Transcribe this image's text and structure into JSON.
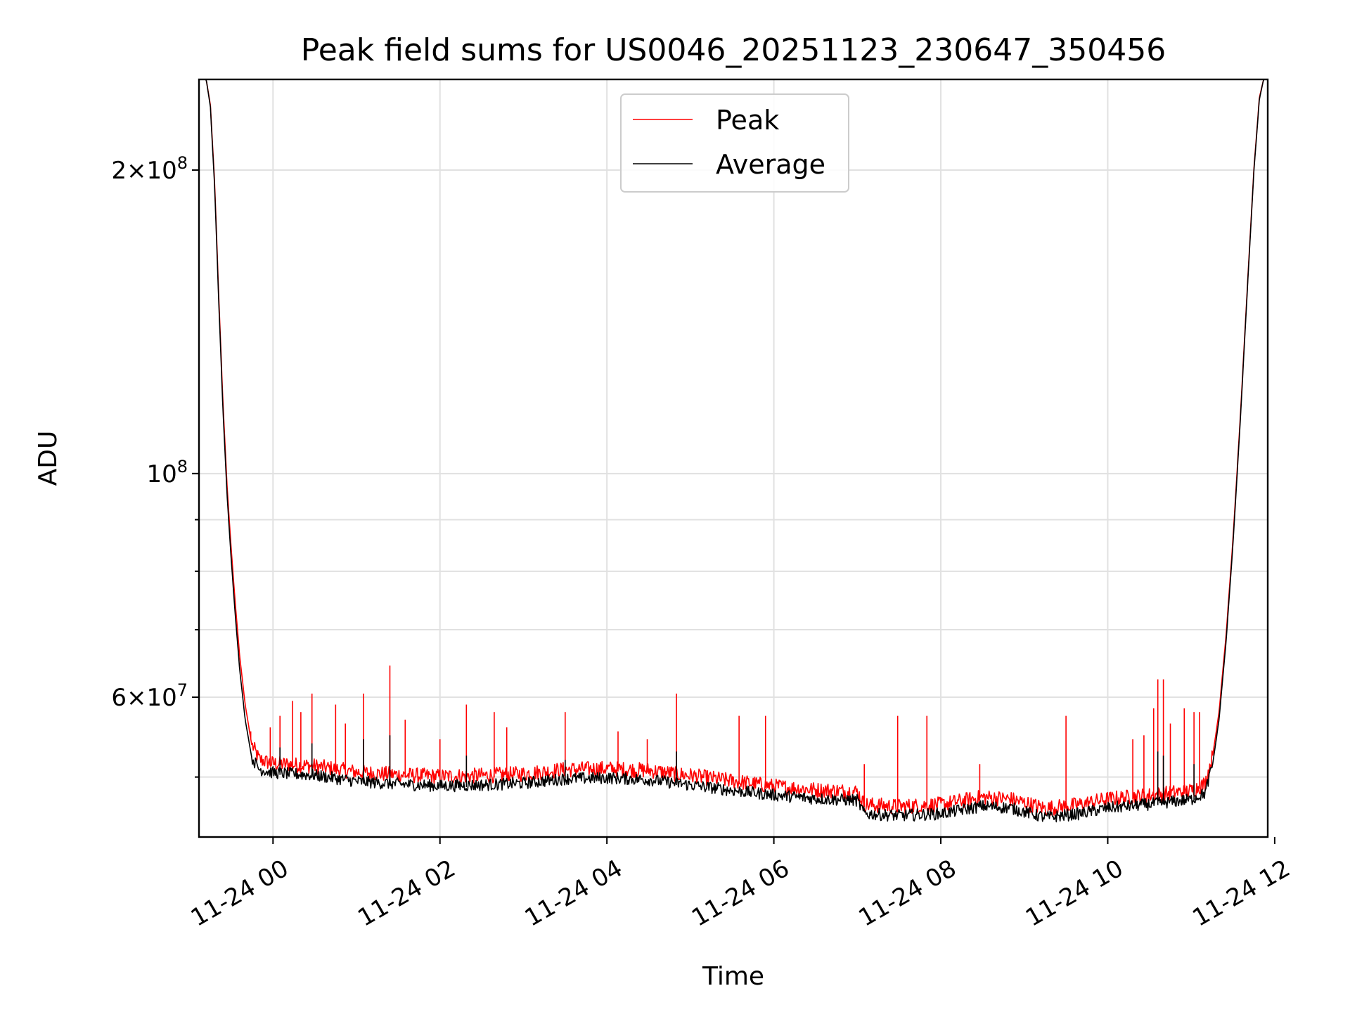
{
  "chart_data": {
    "type": "line",
    "title": "Peak field sums for US0046_20251123_230647_350456",
    "xlabel": "Time",
    "ylabel": "ADU",
    "yscale": "log",
    "ylim": [
      43600000,
      246000000
    ],
    "xlim": [
      "2025-11-23 23:06:47",
      "2025-11-24 11:55:00"
    ],
    "grid": true,
    "legend_position": "top-center",
    "x_ticks": [
      {
        "t": "2025-11-24 00:00",
        "label": "11-24 00"
      },
      {
        "t": "2025-11-24 02:00",
        "label": "11-24 02"
      },
      {
        "t": "2025-11-24 04:00",
        "label": "11-24 04"
      },
      {
        "t": "2025-11-24 06:00",
        "label": "11-24 06"
      },
      {
        "t": "2025-11-24 08:00",
        "label": "11-24 08"
      },
      {
        "t": "2025-11-24 10:00",
        "label": "11-24 10"
      },
      {
        "t": "2025-11-24 12:00",
        "label": "11-24 12"
      }
    ],
    "y_major_ticks": [
      {
        "v": 100000000,
        "base": "10",
        "exp": "8",
        "mult": ""
      },
      {
        "v": 60000000,
        "base": "10",
        "exp": "7",
        "mult": "6"
      },
      {
        "v": 200000000,
        "base": "10",
        "exp": "8",
        "mult": "2"
      }
    ],
    "y_minor_ticks": [
      50000000,
      70000000,
      80000000,
      90000000,
      300000000
    ],
    "series": [
      {
        "name": "Peak",
        "color": "#ff0000",
        "points": [
          [
            "2025-11-23 23:06:47",
            246000000
          ],
          [
            "2025-11-23 23:12:00",
            246000000
          ],
          [
            "2025-11-23 23:15:00",
            232000000
          ],
          [
            "2025-11-23 23:18:00",
            195000000
          ],
          [
            "2025-11-23 23:21:00",
            150000000
          ],
          [
            "2025-11-23 23:24:00",
            118000000
          ],
          [
            "2025-11-23 23:27:00",
            97000000
          ],
          [
            "2025-11-23 23:30:00",
            84000000
          ],
          [
            "2025-11-23 23:33:00",
            74000000
          ],
          [
            "2025-11-23 23:36:00",
            66000000
          ],
          [
            "2025-11-23 23:40:00",
            59000000
          ],
          [
            "2025-11-23 23:45:00",
            53500000
          ],
          [
            "2025-11-23 23:50:00",
            51800000
          ],
          [
            "2025-11-23 23:55:00",
            51500000
          ],
          [
            "2025-11-24 00:00:00",
            51300000
          ],
          [
            "2025-11-24 00:30:00",
            51000000
          ],
          [
            "2025-11-24 01:00:00",
            50300000
          ],
          [
            "2025-11-24 01:30:00",
            50000000
          ],
          [
            "2025-11-24 02:00:00",
            49800000
          ],
          [
            "2025-11-24 02:30:00",
            49900000
          ],
          [
            "2025-11-24 03:00:00",
            50100000
          ],
          [
            "2025-11-24 03:30:00",
            50600000
          ],
          [
            "2025-11-24 04:00:00",
            50700000
          ],
          [
            "2025-11-24 04:30:00",
            50500000
          ],
          [
            "2025-11-24 05:00:00",
            49900000
          ],
          [
            "2025-11-24 05:30:00",
            49300000
          ],
          [
            "2025-11-24 06:00:00",
            48700000
          ],
          [
            "2025-11-24 06:30:00",
            48300000
          ],
          [
            "2025-11-24 07:00:00",
            48100000
          ],
          [
            "2025-11-24 07:05:00",
            46700000
          ],
          [
            "2025-11-24 07:30:00",
            46500000
          ],
          [
            "2025-11-24 08:00:00",
            46700000
          ],
          [
            "2025-11-24 08:30:00",
            47500000
          ],
          [
            "2025-11-24 08:50:00",
            47300000
          ],
          [
            "2025-11-24 09:15:00",
            46300000
          ],
          [
            "2025-11-24 09:40:00",
            46700000
          ],
          [
            "2025-11-24 10:00:00",
            47300000
          ],
          [
            "2025-11-24 10:30:00",
            47700000
          ],
          [
            "2025-11-24 11:00:00",
            48200000
          ],
          [
            "2025-11-24 11:10:00",
            49000000
          ],
          [
            "2025-11-24 11:15:00",
            52000000
          ],
          [
            "2025-11-24 11:20:00",
            58000000
          ],
          [
            "2025-11-24 11:25:00",
            69000000
          ],
          [
            "2025-11-24 11:30:00",
            86000000
          ],
          [
            "2025-11-24 11:35:00",
            112000000
          ],
          [
            "2025-11-24 11:40:00",
            150000000
          ],
          [
            "2025-11-24 11:45:00",
            200000000
          ],
          [
            "2025-11-24 11:49:00",
            236000000
          ],
          [
            "2025-11-24 11:52:00",
            246000000
          ],
          [
            "2025-11-24 11:55:00",
            246000000
          ]
        ],
        "spikes": [
          [
            "2025-11-23 23:44:00",
            55500000
          ],
          [
            "2025-11-23 23:58:00",
            56000000
          ],
          [
            "2025-11-24 00:05:00",
            57500000
          ],
          [
            "2025-11-24 00:14:00",
            59500000
          ],
          [
            "2025-11-24 00:20:00",
            58000000
          ],
          [
            "2025-11-24 00:28:00",
            60500000
          ],
          [
            "2025-11-24 00:45:00",
            59000000
          ],
          [
            "2025-11-24 00:52:00",
            56500000
          ],
          [
            "2025-11-24 01:05:00",
            60500000
          ],
          [
            "2025-11-24 01:24:00",
            64500000
          ],
          [
            "2025-11-24 01:35:00",
            57000000
          ],
          [
            "2025-11-24 02:00:00",
            54500000
          ],
          [
            "2025-11-24 02:19:00",
            59000000
          ],
          [
            "2025-11-24 02:39:00",
            58000000
          ],
          [
            "2025-11-24 02:48:00",
            56000000
          ],
          [
            "2025-11-24 03:30:00",
            58000000
          ],
          [
            "2025-11-24 04:08:00",
            55500000
          ],
          [
            "2025-11-24 04:29:00",
            54500000
          ],
          [
            "2025-11-24 04:50:00",
            60500000
          ],
          [
            "2025-11-24 05:35:00",
            57500000
          ],
          [
            "2025-11-24 05:54:00",
            57500000
          ],
          [
            "2025-11-24 07:05:00",
            51500000
          ],
          [
            "2025-11-24 07:29:00",
            57500000
          ],
          [
            "2025-11-24 07:50:00",
            57500000
          ],
          [
            "2025-11-24 08:28:00",
            51500000
          ],
          [
            "2025-11-24 09:30:00",
            57500000
          ],
          [
            "2025-11-24 10:18:00",
            54500000
          ],
          [
            "2025-11-24 10:26:00",
            55000000
          ],
          [
            "2025-11-24 10:33:00",
            58500000
          ],
          [
            "2025-11-24 10:36:00",
            62500000
          ],
          [
            "2025-11-24 10:40:00",
            62500000
          ],
          [
            "2025-11-24 10:45:00",
            56500000
          ],
          [
            "2025-11-24 10:55:00",
            58500000
          ],
          [
            "2025-11-24 11:02:00",
            58000000
          ],
          [
            "2025-11-24 11:06:00",
            58000000
          ]
        ]
      },
      {
        "name": "Average",
        "color": "#000000",
        "points": [
          [
            "2025-11-23 23:06:47",
            246000000
          ],
          [
            "2025-11-23 23:12:00",
            246000000
          ],
          [
            "2025-11-23 23:15:00",
            231000000
          ],
          [
            "2025-11-23 23:18:00",
            193000000
          ],
          [
            "2025-11-23 23:21:00",
            148000000
          ],
          [
            "2025-11-23 23:24:00",
            116000000
          ],
          [
            "2025-11-23 23:27:00",
            95000000
          ],
          [
            "2025-11-23 23:30:00",
            82000000
          ],
          [
            "2025-11-23 23:33:00",
            72000000
          ],
          [
            "2025-11-23 23:36:00",
            64000000
          ],
          [
            "2025-11-23 23:40:00",
            57000000
          ],
          [
            "2025-11-23 23:45:00",
            52000000
          ],
          [
            "2025-11-23 23:50:00",
            50700000
          ],
          [
            "2025-11-23 23:55:00",
            50500000
          ],
          [
            "2025-11-24 00:00:00",
            50300000
          ],
          [
            "2025-11-24 00:30:00",
            50000000
          ],
          [
            "2025-11-24 01:00:00",
            49300000
          ],
          [
            "2025-11-24 01:30:00",
            49000000
          ],
          [
            "2025-11-24 02:00:00",
            48800000
          ],
          [
            "2025-11-24 02:30:00",
            48900000
          ],
          [
            "2025-11-24 03:00:00",
            49100000
          ],
          [
            "2025-11-24 03:30:00",
            49600000
          ],
          [
            "2025-11-24 04:00:00",
            49700000
          ],
          [
            "2025-11-24 04:30:00",
            49500000
          ],
          [
            "2025-11-24 05:00:00",
            48900000
          ],
          [
            "2025-11-24 05:30:00",
            48300000
          ],
          [
            "2025-11-24 06:00:00",
            47800000
          ],
          [
            "2025-11-24 06:30:00",
            47400000
          ],
          [
            "2025-11-24 07:00:00",
            47200000
          ],
          [
            "2025-11-24 07:05:00",
            45800000
          ],
          [
            "2025-11-24 07:30:00",
            45600000
          ],
          [
            "2025-11-24 08:00:00",
            45800000
          ],
          [
            "2025-11-24 08:30:00",
            46600000
          ],
          [
            "2025-11-24 08:50:00",
            46400000
          ],
          [
            "2025-11-24 09:15:00",
            45400000
          ],
          [
            "2025-11-24 09:40:00",
            45800000
          ],
          [
            "2025-11-24 10:00:00",
            46400000
          ],
          [
            "2025-11-24 10:30:00",
            46800000
          ],
          [
            "2025-11-24 11:00:00",
            47300000
          ],
          [
            "2025-11-24 11:10:00",
            48000000
          ],
          [
            "2025-11-24 11:15:00",
            51000000
          ],
          [
            "2025-11-24 11:20:00",
            57000000
          ],
          [
            "2025-11-24 11:25:00",
            68000000
          ],
          [
            "2025-11-24 11:30:00",
            85000000
          ],
          [
            "2025-11-24 11:35:00",
            111000000
          ],
          [
            "2025-11-24 11:40:00",
            149000000
          ],
          [
            "2025-11-24 11:45:00",
            199000000
          ],
          [
            "2025-11-24 11:49:00",
            235000000
          ],
          [
            "2025-11-24 11:52:00",
            246000000
          ],
          [
            "2025-11-24 11:55:00",
            246000000
          ]
        ],
        "spikes": [
          [
            "2025-11-24 00:05:00",
            53500000
          ],
          [
            "2025-11-24 00:28:00",
            54000000
          ],
          [
            "2025-11-24 01:05:00",
            54500000
          ],
          [
            "2025-11-24 01:24:00",
            55000000
          ],
          [
            "2025-11-24 02:19:00",
            52500000
          ],
          [
            "2025-11-24 03:30:00",
            52000000
          ],
          [
            "2025-11-24 04:50:00",
            53000000
          ],
          [
            "2025-11-24 10:36:00",
            53000000
          ],
          [
            "2025-11-24 10:40:00",
            52500000
          ],
          [
            "2025-11-24 11:02:00",
            51500000
          ]
        ]
      }
    ]
  }
}
